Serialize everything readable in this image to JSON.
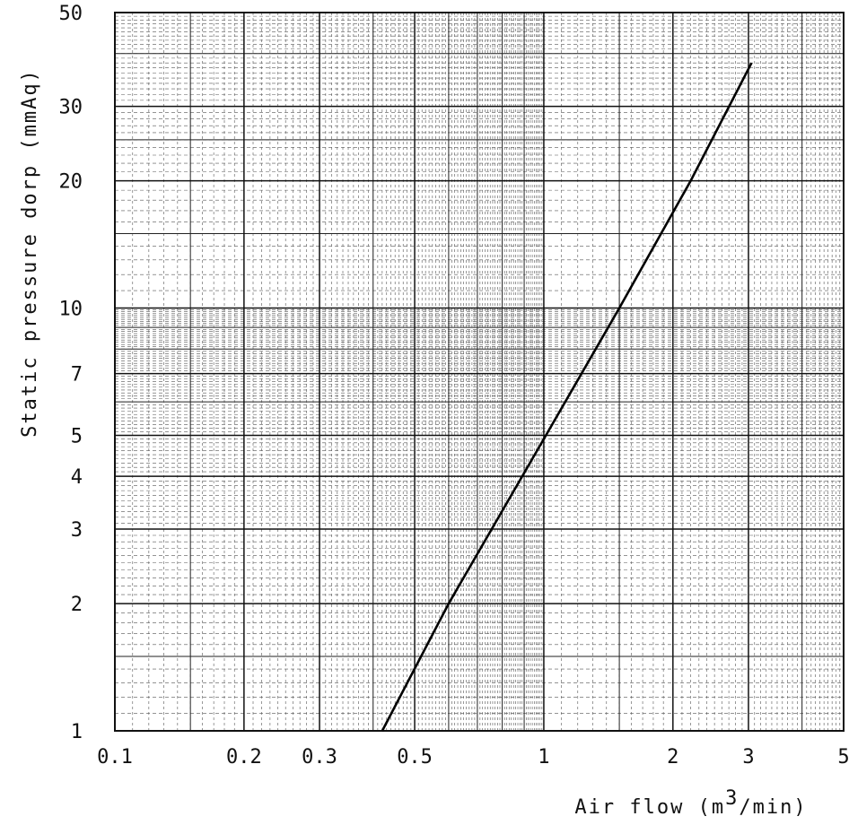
{
  "chart_data": {
    "type": "line",
    "title": "",
    "xlabel": "Air flow (m3/min)",
    "xlabel_parts": {
      "before": "Air flow (m",
      "sup": "3",
      "after": "/min)"
    },
    "ylabel": "Static pressure dorp (mmAq)",
    "x_scale": "log",
    "y_scale": "log",
    "xlim": [
      0.1,
      5
    ],
    "ylim": [
      1,
      50
    ],
    "grid": true,
    "x_ticks": [
      {
        "value": 0.1,
        "label": "0.1"
      },
      {
        "value": 0.2,
        "label": "0.2"
      },
      {
        "value": 0.3,
        "label": "0.3"
      },
      {
        "value": 0.5,
        "label": "0.5"
      },
      {
        "value": 1,
        "label": "1"
      },
      {
        "value": 2,
        "label": "2"
      },
      {
        "value": 3,
        "label": "3"
      },
      {
        "value": 5,
        "label": "5"
      }
    ],
    "y_ticks": [
      {
        "value": 1,
        "label": "1"
      },
      {
        "value": 2,
        "label": "2"
      },
      {
        "value": 3,
        "label": "3"
      },
      {
        "value": 4,
        "label": "4"
      },
      {
        "value": 5,
        "label": "5"
      },
      {
        "value": 7,
        "label": "7"
      },
      {
        "value": 10,
        "label": "10"
      },
      {
        "value": 20,
        "label": "20"
      },
      {
        "value": 30,
        "label": "30"
      },
      {
        "value": 50,
        "label": "50"
      }
    ],
    "series": [
      {
        "x": [
          0.42,
          0.6,
          1.0,
          1.5,
          2.2,
          3.05
        ],
        "y": [
          1,
          2,
          4.9,
          10,
          20,
          38
        ]
      }
    ]
  }
}
